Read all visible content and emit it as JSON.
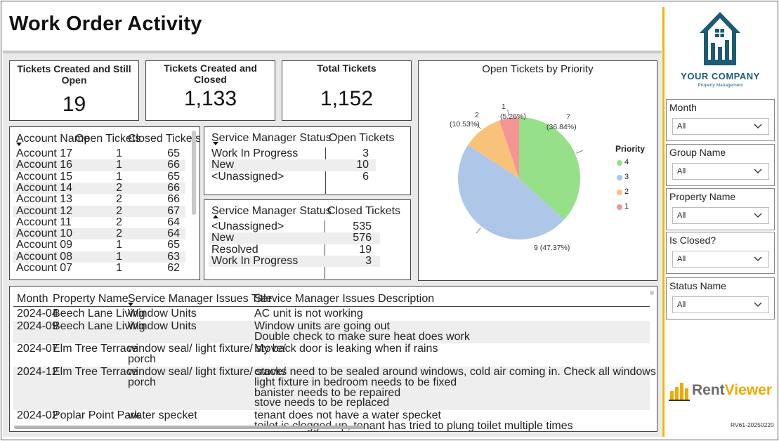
{
  "page": {
    "title": "Work Order Activity"
  },
  "kpis": [
    {
      "title": "Tickets Created and Still Open",
      "value": "19"
    },
    {
      "title": "Tickets Created and Closed",
      "value": "1,133"
    },
    {
      "title": "Total Tickets",
      "value": "1,152"
    }
  ],
  "account_table": {
    "headers": [
      "Account Name",
      "Open Tickets",
      "Closed Tickets"
    ],
    "rows": [
      [
        "Account 17",
        "1",
        "65"
      ],
      [
        "Account 16",
        "1",
        "66"
      ],
      [
        "Account 15",
        "1",
        "65"
      ],
      [
        "Account 14",
        "2",
        "66"
      ],
      [
        "Account 13",
        "2",
        "66"
      ],
      [
        "Account 12",
        "2",
        "67"
      ],
      [
        "Account 11",
        "2",
        "64"
      ],
      [
        "Account 10",
        "2",
        "64"
      ],
      [
        "Account 09",
        "1",
        "65"
      ],
      [
        "Account 08",
        "1",
        "63"
      ],
      [
        "Account 07",
        "1",
        "62"
      ]
    ]
  },
  "status_open_table": {
    "headers": [
      "Service Manager Status",
      "Open Tickets"
    ],
    "rows": [
      [
        "Work In Progress",
        "3"
      ],
      [
        "New",
        "10"
      ],
      [
        "<Unassigned>",
        "6"
      ]
    ]
  },
  "status_closed_table": {
    "headers": [
      "Service Manager Status",
      "Closed Tickets"
    ],
    "rows": [
      [
        "<Unassigned>",
        "535"
      ],
      [
        "New",
        "576"
      ],
      [
        "Resolved",
        "19"
      ],
      [
        "Work In Progress",
        "3"
      ]
    ]
  },
  "chart_data": {
    "type": "pie",
    "title": "Open Tickets by Priority",
    "legend_title": "Priority",
    "legend_position": "right",
    "slices": [
      {
        "name": "4",
        "value": 7,
        "label": "7",
        "pct_label": "(36.84%)",
        "color": "#96e08a"
      },
      {
        "name": "3",
        "value": 9,
        "label": "9 (47.37%)",
        "pct_label": "",
        "color": "#aec6e8"
      },
      {
        "name": "2",
        "value": 2,
        "label": "2",
        "pct_label": "(10.53%)",
        "color": "#f9c27a"
      },
      {
        "name": "1",
        "value": 1,
        "label": "1",
        "pct_label": "(5.26%)",
        "color": "#f59494"
      }
    ]
  },
  "issues_table": {
    "headers": [
      "Month",
      "Property Name",
      "Service Manager Issues Title",
      "Service Manager Issues Description"
    ],
    "rows": [
      {
        "month": "2024-04",
        "property": "Beech Lane Living",
        "title": [
          "Window Units"
        ],
        "desc": [
          "AC unit is not working"
        ]
      },
      {
        "month": "2024-09",
        "property": "Beech Lane Living",
        "title": [
          "Window Units"
        ],
        "desc": [
          "Window units are going out",
          "Double check to make sure heat does work"
        ]
      },
      {
        "month": "2024-07",
        "property": "Elm Tree Terrace",
        "title": [
          "window seal/ light fixture/ stove/",
          "porch"
        ],
        "desc": [
          "My back door is leaking when if rains"
        ]
      },
      {
        "month": "2024-12",
        "property": "Elm Tree Terrace",
        "title": [
          "window seal/ light fixture/ stove/",
          "porch"
        ],
        "desc": [
          "cracks need to be sealed around windows, cold air coming in. Check all windows",
          "light fixture in bedroom needs to be fixed",
          "banister needs to be repaired",
          "stove needs to be replaced"
        ]
      },
      {
        "month": "2024-02",
        "property": "Poplar Point Park",
        "title": [
          "water specket"
        ],
        "desc": [
          "tenant does not have a water specket",
          "toilet is clogged up, tenant has tried to plung toilet multiple times"
        ]
      }
    ]
  },
  "company": {
    "name": "YOUR COMPANY",
    "tagline": "Property Management",
    "brand_color": "#1c5b73"
  },
  "slicers": [
    {
      "label": "Month",
      "value": "All"
    },
    {
      "label": "Group Name",
      "value": "All"
    },
    {
      "label": "Property Name",
      "value": "All"
    },
    {
      "label": "Is Closed?",
      "value": "All"
    },
    {
      "label": "Status Name",
      "value": "All"
    }
  ],
  "footer": {
    "brand_rent": "Rent",
    "brand_viewer": "Viewer",
    "version": "RV61-20250220"
  },
  "colors": {
    "accent": "#f2b600",
    "panel_bg": "#e9e9e9"
  }
}
